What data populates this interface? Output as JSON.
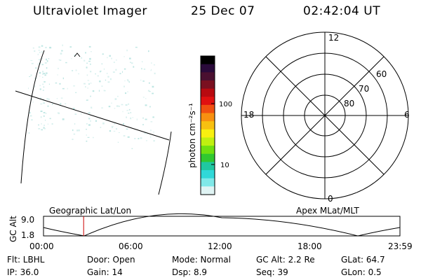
{
  "header": {
    "instrument": "Ultraviolet Imager",
    "date": "25 Dec 07",
    "time": "02:42:04 UT"
  },
  "colorbar": {
    "unit_label": "photon cm⁻²s⁻¹",
    "ticks": [
      "100",
      "10"
    ],
    "colors": [
      "#000000",
      "#2a0a3a",
      "#4a1030",
      "#7a1020",
      "#b80a10",
      "#e01010",
      "#f05010",
      "#f89010",
      "#f8c010",
      "#f8f010",
      "#c0f010",
      "#70e010",
      "#30c830",
      "#20c8a0",
      "#30d8d8",
      "#80e8e8",
      "#e0f4f4"
    ]
  },
  "polar_plot": {
    "mlt_labels": {
      "top": "12",
      "left": "18",
      "right": "6",
      "bottom": "0"
    },
    "lat_labels": [
      "60",
      "70",
      "80"
    ]
  },
  "timeline": {
    "ylabel": "GC Alt",
    "y_ticks": [
      "9.0",
      "1.8"
    ],
    "left_label": "Geographic Lat/Lon",
    "right_label": "Apex  MLat/MLT",
    "x_ticks": [
      "00:00",
      "06:00",
      "12:00",
      "18:00",
      "23:59"
    ],
    "current_hour": 2.7,
    "marker_color": "#cc0000"
  },
  "footer": {
    "flt": "Flt: LBHL",
    "door": "Door: Open",
    "mode": "Mode: Normal",
    "gc_alt": "GC Alt: 2.2 Re",
    "glat": "GLat:  64.7",
    "ip": "IP: 36.0",
    "gain": "Gain: 14",
    "dsp": "Dsp:     8.9",
    "seq": "Seq: 39",
    "glon": "GLon:   0.5"
  }
}
